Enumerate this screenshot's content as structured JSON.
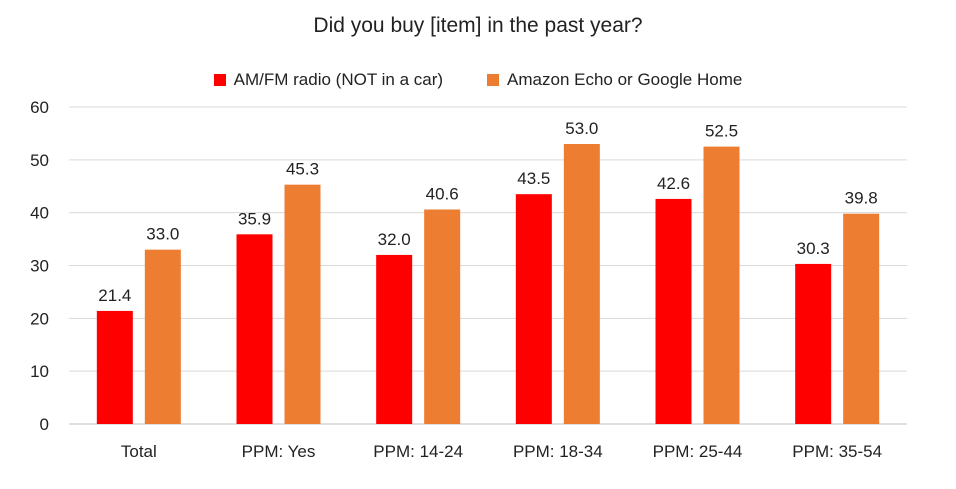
{
  "chart_data": {
    "type": "bar",
    "title": "Did you buy [item] in the past year?",
    "categories": [
      "Total",
      "PPM: Yes",
      "PPM: 14-24",
      "PPM: 18-34",
      "PPM: 25-44",
      "PPM: 35-54"
    ],
    "series": [
      {
        "name": "AM/FM radio (NOT in a car)",
        "color": "#ff0000",
        "values": [
          21.4,
          35.9,
          32.0,
          43.5,
          42.6,
          30.3
        ]
      },
      {
        "name": "Amazon Echo or Google Home",
        "color": "#ed7d31",
        "values": [
          33.0,
          45.3,
          40.6,
          53.0,
          52.5,
          39.8
        ]
      }
    ],
    "ylim": [
      0,
      60
    ],
    "yticks": [
      0,
      10,
      20,
      30,
      40,
      50,
      60
    ],
    "value_decimals": 1,
    "xlabel": "",
    "ylabel": "",
    "grid": true,
    "legend_position": "top"
  }
}
